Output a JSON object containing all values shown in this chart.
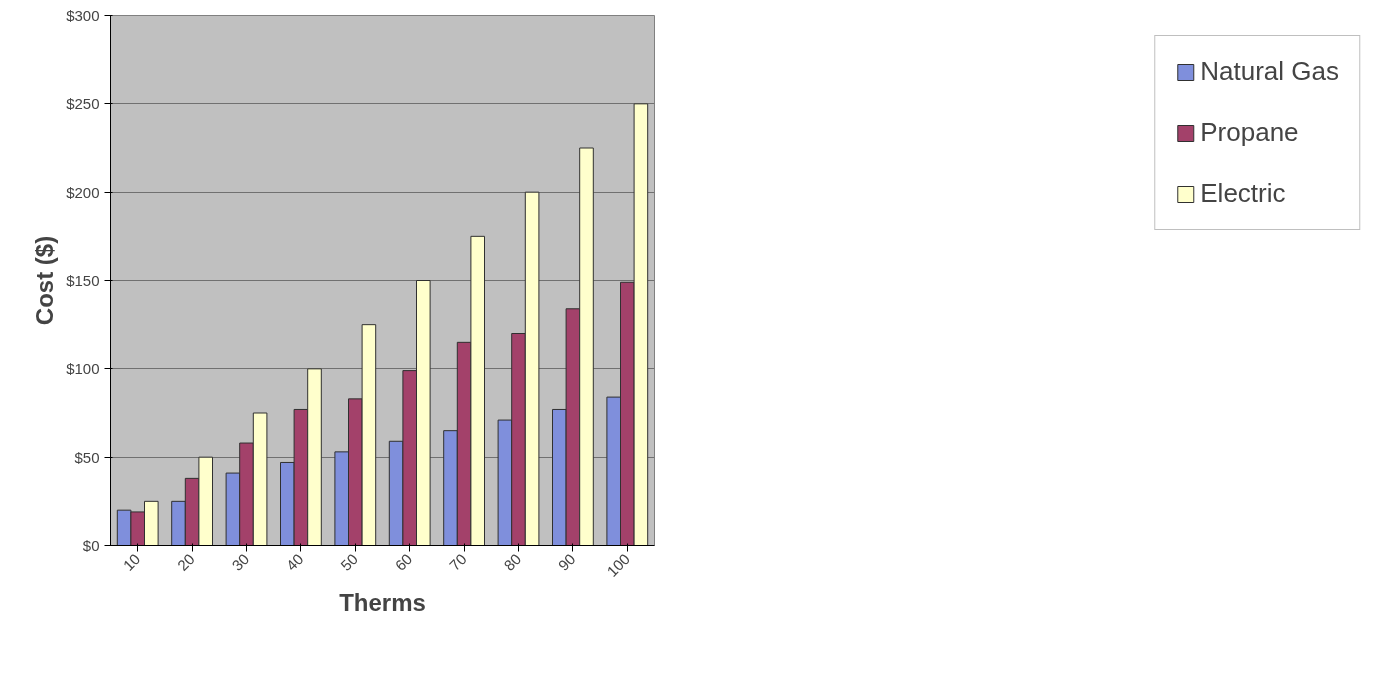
{
  "chart_data": {
    "type": "bar",
    "xlabel": "Therms",
    "ylabel": "Cost ($)",
    "categories": [
      "10",
      "20",
      "30",
      "40",
      "50",
      "60",
      "70",
      "80",
      "90",
      "100"
    ],
    "series": [
      {
        "name": "Natural Gas",
        "color": "#7f8fdc",
        "values": [
          20,
          25,
          41,
          47,
          53,
          59,
          65,
          71,
          77,
          84
        ]
      },
      {
        "name": "Propane",
        "color": "#a3416a",
        "values": [
          19,
          38,
          58,
          77,
          83,
          99,
          115,
          120,
          134,
          149
        ]
      },
      {
        "name": "Electric",
        "color": "#ffffcc",
        "values": [
          25,
          50,
          75,
          100,
          125,
          150,
          175,
          200,
          225,
          250
        ]
      }
    ],
    "ylim": [
      0,
      300
    ],
    "yticks": [
      {
        "value": 0,
        "label": "$0"
      },
      {
        "value": 50,
        "label": "$50"
      },
      {
        "value": 100,
        "label": "$100"
      },
      {
        "value": 150,
        "label": "$150"
      },
      {
        "value": 200,
        "label": "$200"
      },
      {
        "value": 250,
        "label": "$250"
      },
      {
        "value": 300,
        "label": "$300"
      }
    ],
    "grid": "y",
    "legend": "right"
  }
}
